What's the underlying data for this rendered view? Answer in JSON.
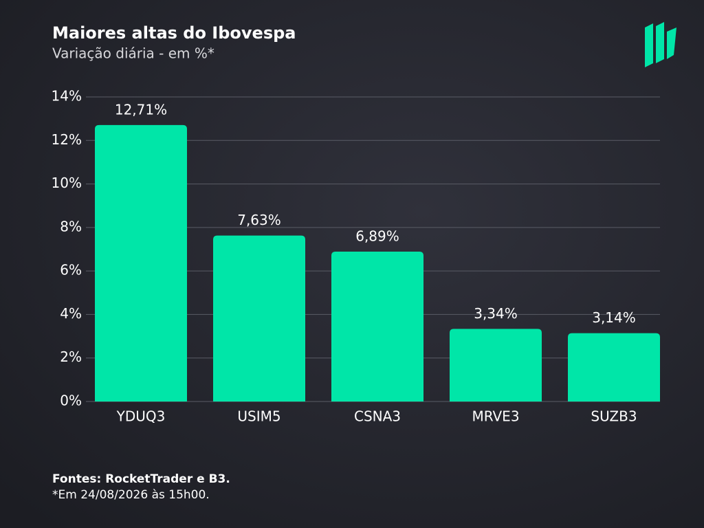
{
  "chart_data": {
    "type": "bar",
    "title": "Maiores altas do Ibovespa",
    "subtitle": "Variação diária - em %*",
    "categories": [
      "YDUQ3",
      "USIM5",
      "CSNA3",
      "MRVE3",
      "SUZB3"
    ],
    "values": [
      12.71,
      7.63,
      6.89,
      3.34,
      3.14
    ],
    "value_labels": [
      "12,71%",
      "7,63%",
      "6,89%",
      "3,34%",
      "3,14%"
    ],
    "color": "#00e6a8",
    "ylim": [
      0,
      14
    ],
    "yticks": [
      {
        "value": 0,
        "label": "0%"
      },
      {
        "value": 2,
        "label": "2%"
      },
      {
        "value": 4,
        "label": "4%"
      },
      {
        "value": 6,
        "label": "6%"
      },
      {
        "value": 8,
        "label": "8%"
      },
      {
        "value": 10,
        "label": "10%"
      },
      {
        "value": 12,
        "label": "12%"
      },
      {
        "value": 14,
        "label": "14%"
      }
    ],
    "grid": true,
    "source": "Fontes: RocketTrader e B3.",
    "note": "*Em 24/08/2026 às 15h00."
  }
}
